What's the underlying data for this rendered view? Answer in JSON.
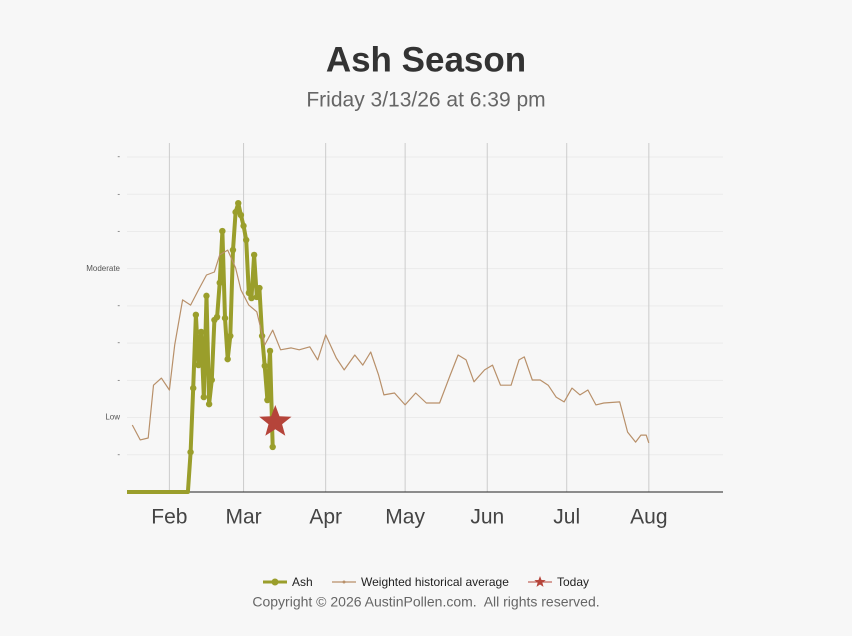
{
  "chart_data": {
    "type": "line",
    "title": "Ash Season",
    "subtitle": "Friday 3/13/26 at 6:39 pm",
    "xlim": [
      16,
      241
    ],
    "xticks": [
      {
        "value": 32,
        "label": "Feb"
      },
      {
        "value": 60,
        "label": "Mar"
      },
      {
        "value": 91,
        "label": "Apr"
      },
      {
        "value": 121,
        "label": "May"
      },
      {
        "value": 152,
        "label": "Jun"
      },
      {
        "value": 182,
        "label": "Jul"
      },
      {
        "value": 213,
        "label": "Aug"
      }
    ],
    "ylim": [
      0,
      9
    ],
    "yticks": [
      {
        "value": 1,
        "label": "-"
      },
      {
        "value": 2,
        "label": "Low"
      },
      {
        "value": 3,
        "label": "-"
      },
      {
        "value": 4,
        "label": "-"
      },
      {
        "value": 5,
        "label": "-"
      },
      {
        "value": 6,
        "label": "Moderate"
      },
      {
        "value": 7,
        "label": "-"
      },
      {
        "value": 8,
        "label": "-"
      },
      {
        "value": 9,
        "label": "-"
      }
    ],
    "grid": true,
    "legend": "bottom",
    "series": [
      {
        "name": "Ash",
        "color": "#9a9e2b",
        "marker": "circle",
        "x": [
          16,
          39,
          40,
          41,
          42,
          43,
          44,
          45,
          46,
          47,
          48,
          49,
          50,
          51,
          52,
          53,
          54,
          55,
          56,
          57,
          58,
          59,
          60,
          61,
          62,
          63,
          64,
          65,
          66,
          67,
          68,
          69,
          70,
          71
        ],
        "values": [
          0,
          0,
          1.07,
          2.79,
          4.76,
          3.41,
          4.3,
          2.55,
          5.27,
          2.36,
          3.01,
          4.62,
          4.7,
          5.62,
          7.01,
          4.67,
          3.57,
          4.19,
          6.5,
          7.52,
          7.76,
          7.44,
          7.15,
          6.77,
          5.35,
          5.21,
          6.37,
          5.24,
          5.48,
          4.19,
          3.39,
          2.47,
          3.79,
          1.21
        ]
      },
      {
        "name": "Weighted historical average",
        "color": "#b8906a",
        "marker": "none",
        "x": [
          18,
          21,
          24,
          26,
          29,
          32,
          34,
          37,
          40,
          43,
          46,
          49,
          51,
          54,
          57,
          59,
          62,
          65,
          68,
          71,
          74,
          78,
          81,
          85,
          88,
          91,
          95,
          98,
          102,
          105,
          108,
          111,
          113,
          117,
          121,
          125,
          129,
          134,
          138,
          141,
          144,
          147,
          151,
          154,
          157,
          161,
          164,
          166,
          169,
          172,
          175,
          178,
          181,
          184,
          187,
          190,
          193,
          196,
          202,
          205,
          208,
          210,
          212,
          213
        ],
        "values": [
          1.8,
          1.4,
          1.45,
          2.87,
          3.06,
          2.74,
          3.95,
          5.16,
          5.02,
          5.43,
          5.83,
          5.91,
          6.37,
          6.5,
          6.02,
          5.43,
          5.02,
          4.84,
          3.95,
          4.35,
          3.82,
          3.87,
          3.82,
          3.9,
          3.55,
          4.22,
          3.6,
          3.28,
          3.68,
          3.41,
          3.76,
          3.14,
          2.61,
          2.66,
          2.34,
          2.66,
          2.39,
          2.39,
          3.14,
          3.68,
          3.55,
          2.96,
          3.28,
          3.41,
          2.87,
          2.87,
          3.55,
          3.63,
          3.01,
          3.01,
          2.87,
          2.55,
          2.42,
          2.79,
          2.61,
          2.74,
          2.34,
          2.39,
          2.42,
          1.61,
          1.34,
          1.53,
          1.53,
          1.32
        ]
      },
      {
        "name": "Today",
        "color": "#b5443a",
        "marker": "star",
        "x": [
          72
        ],
        "values": [
          1.88
        ]
      }
    ]
  },
  "copyright": "Copyright © 2026 AustinPollen.com.  All rights reserved."
}
